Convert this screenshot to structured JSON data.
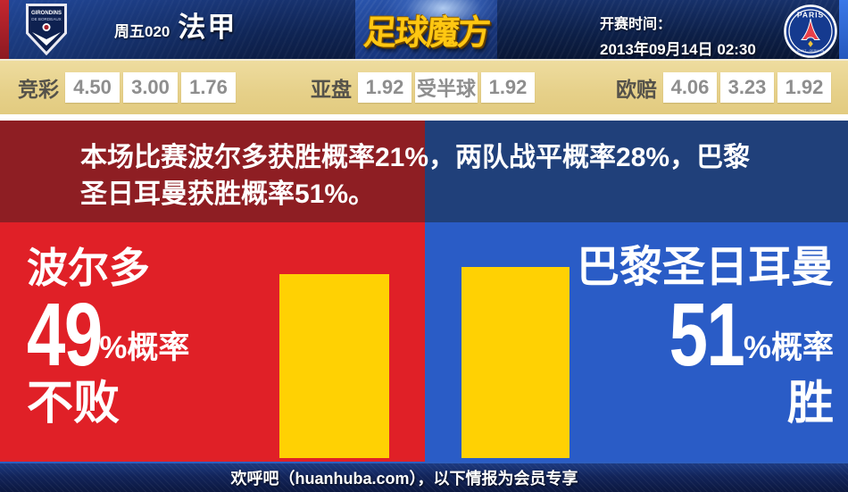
{
  "header": {
    "match_code": "周五020",
    "league": "法甲",
    "site_logo": "足球魔方",
    "kickoff_label": "开赛时间：",
    "kickoff_time": "2013年09月14日 02:30",
    "home_badge": {
      "line1": "GIRONDINS",
      "line2": "DE BORDEAUX"
    },
    "away_badge": {
      "top": "PARIS",
      "bottom": "SAINT - GERMAIN"
    }
  },
  "odds_bar": {
    "sporttery": {
      "label": "竞彩",
      "values": [
        "4.50",
        "3.00",
        "1.76"
      ]
    },
    "asian_handicap": {
      "label": "亚盘",
      "values": [
        "1.92",
        "受半球",
        "1.92"
      ]
    },
    "european": {
      "label": "欧赔",
      "values": [
        "4.06",
        "3.23",
        "1.92"
      ]
    }
  },
  "summary": {
    "line1": "本场比赛波尔多获胜概率21%，两队战平概率28%，巴黎",
    "line2": "圣日耳曼获胜概率51%。"
  },
  "prediction": {
    "home": {
      "team": "波尔多",
      "probability": "49",
      "suffix": "%概率",
      "outcome": "不败",
      "value": 49
    },
    "away": {
      "team": "巴黎圣日耳曼",
      "probability": "51",
      "suffix": "%概率",
      "outcome": "胜",
      "value": 51
    }
  },
  "footer": {
    "text": "欢呼吧（huanhuba.com），以下情报为会员专享"
  },
  "chart_data": {
    "type": "bar",
    "categories": [
      "波尔多 不败",
      "巴黎圣日耳曼 胜"
    ],
    "values": [
      49,
      51
    ],
    "unit": "%",
    "bar_color": "#ffd103"
  },
  "colors": {
    "bright-red": "#e02027",
    "bright-blue": "#2a5cc6",
    "dark-red": "#8e1e23",
    "dark-blue": "#20407a",
    "yellow": "#ffd103",
    "tan": "#e8d28e",
    "logo-gold": "#ffc712",
    "header-navy": "#0d2049",
    "footer-navy": "#12245a"
  }
}
